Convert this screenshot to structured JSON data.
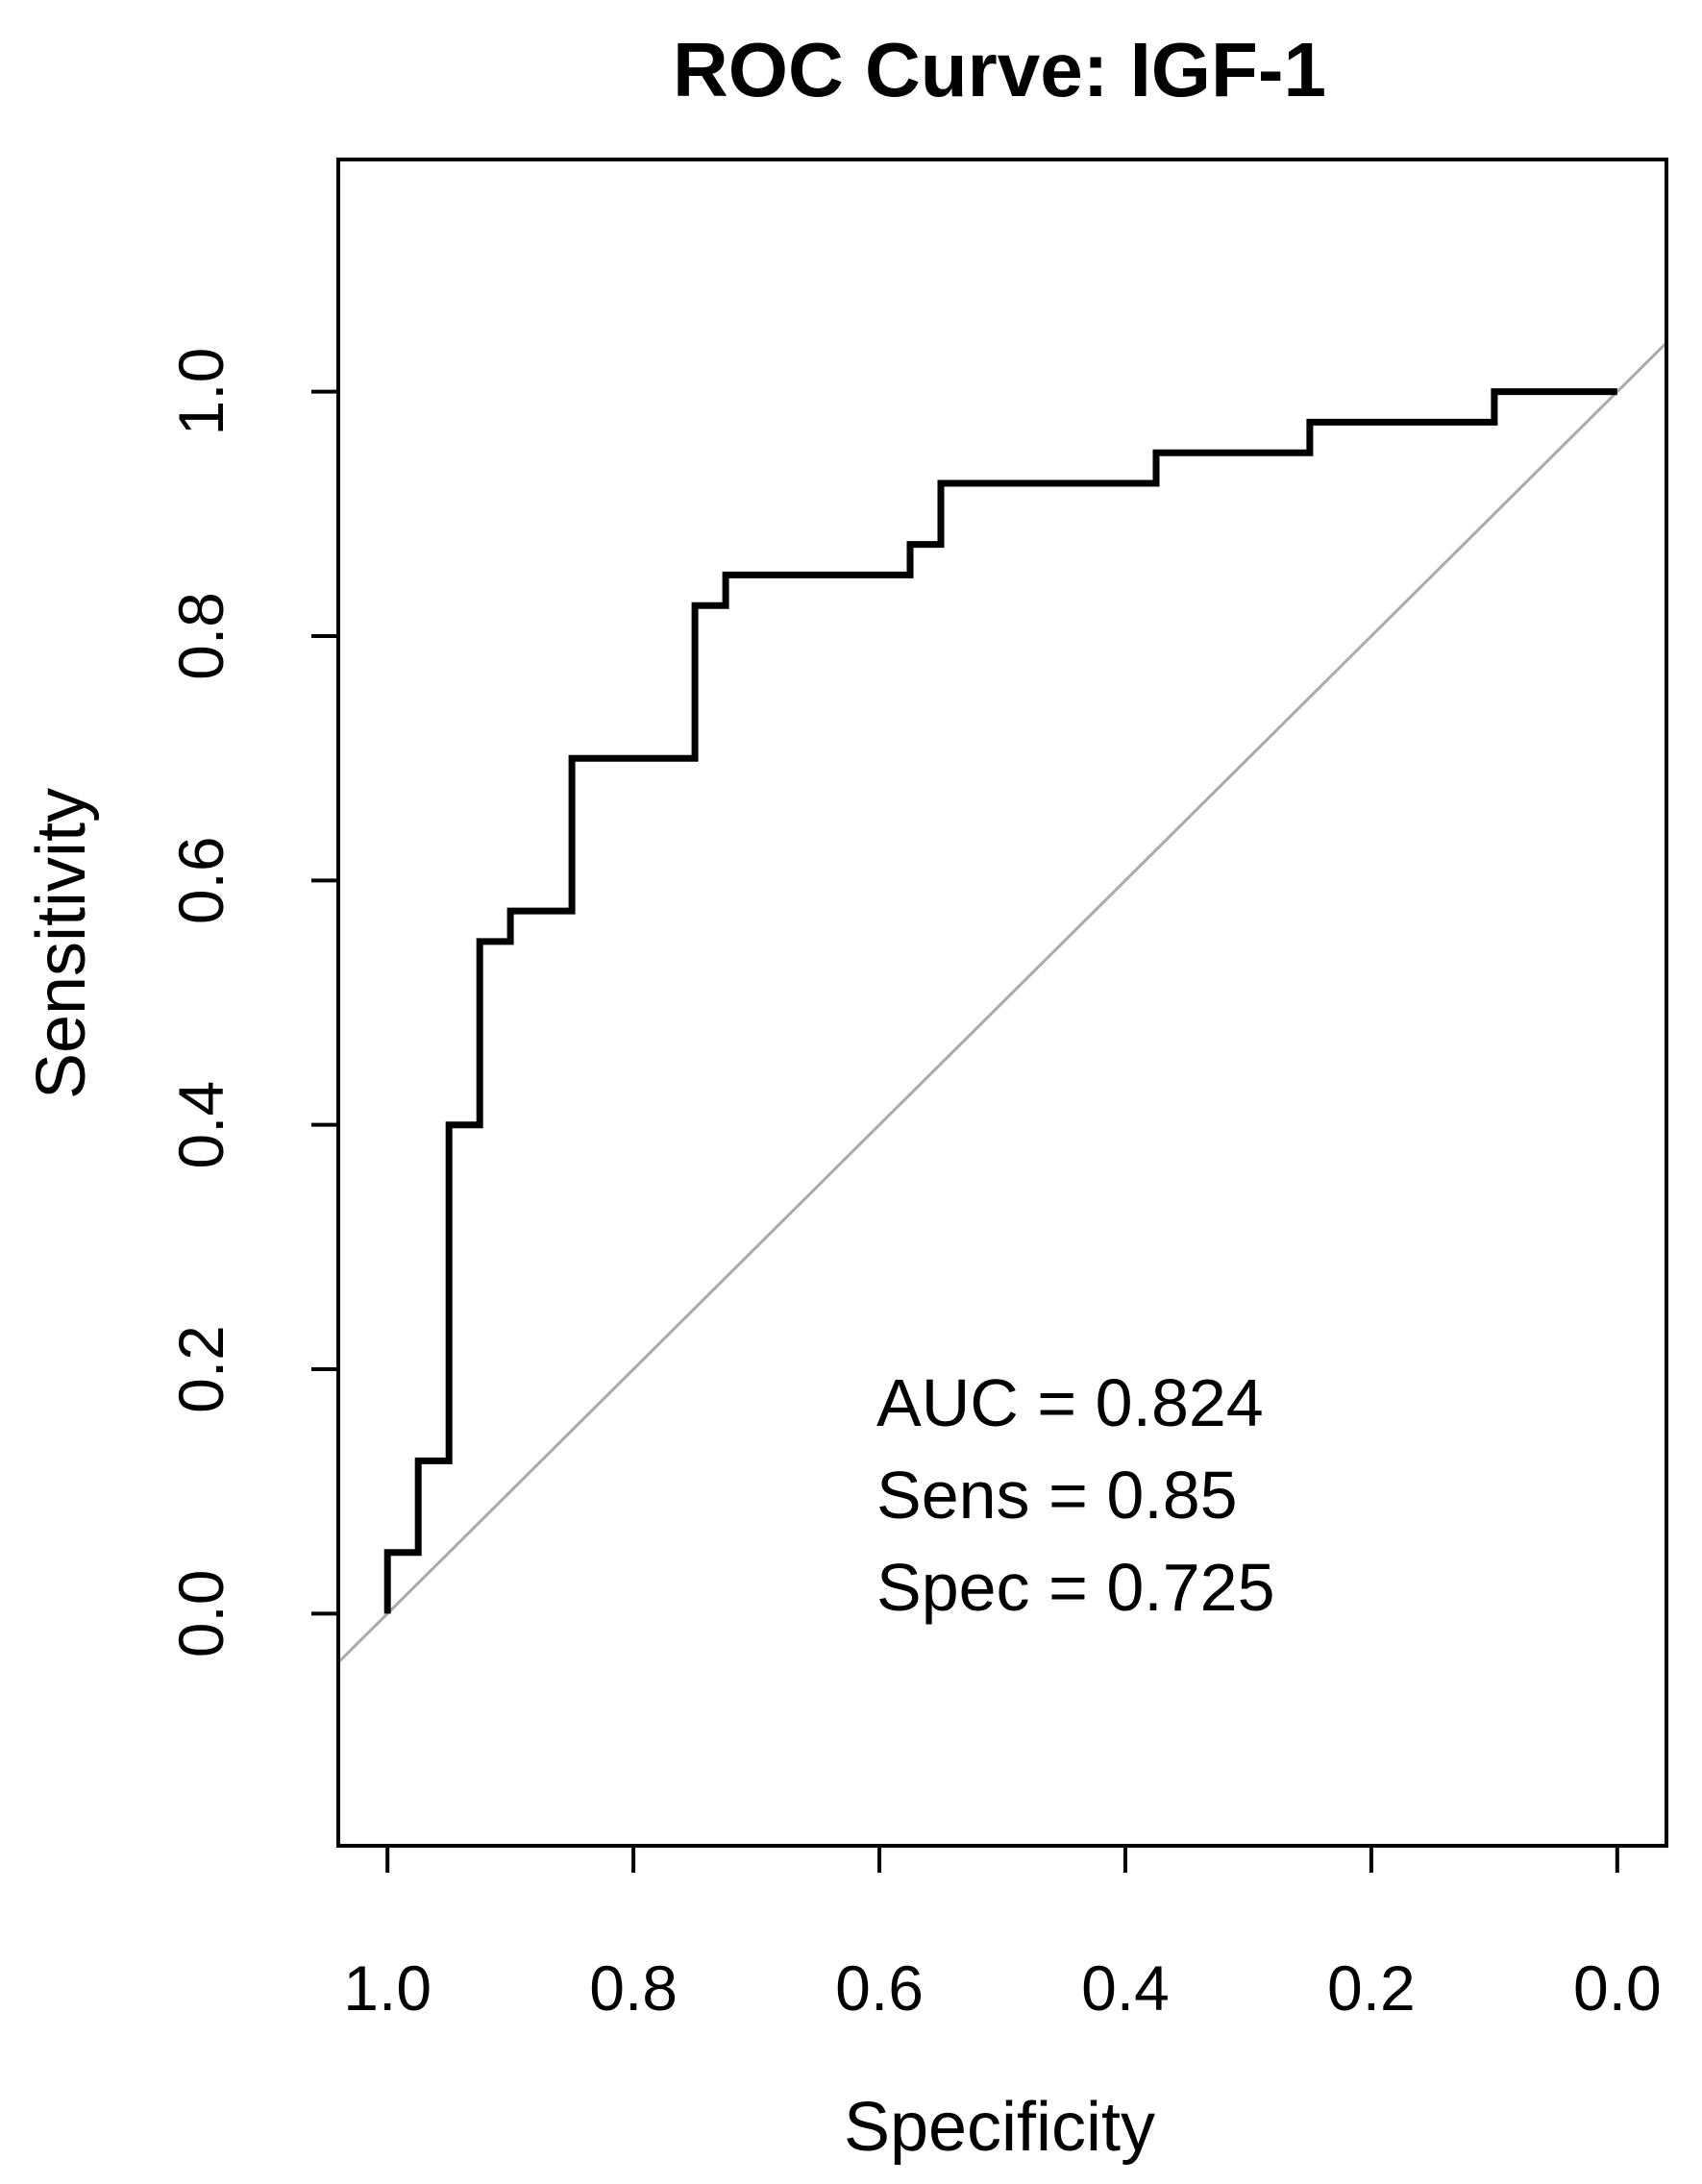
{
  "chart_data": {
    "type": "line",
    "title": "ROC Curve: IGF-1",
    "xlabel": "Specificity",
    "ylabel": "Sensitivity",
    "xlim": [
      1.04,
      -0.04
    ],
    "ylim": [
      -0.19,
      1.19
    ],
    "x_reversed": true,
    "grid": false,
    "x_ticks": [
      1.0,
      0.8,
      0.6,
      0.4,
      0.2,
      0.0
    ],
    "x_tick_labels": [
      "1.0",
      "0.8",
      "0.6",
      "0.4",
      "0.2",
      "0.0"
    ],
    "y_ticks": [
      0.0,
      0.2,
      0.4,
      0.6,
      0.8,
      1.0
    ],
    "y_tick_labels": [
      "0.0",
      "0.2",
      "0.4",
      "0.6",
      "0.8",
      "1.0"
    ],
    "series": [
      {
        "color": "#000000",
        "x": [
          1.0,
          1.0,
          0.975,
          0.975,
          0.95,
          0.95,
          0.925,
          0.925,
          0.9,
          0.9,
          0.85,
          0.85,
          0.75,
          0.75,
          0.725,
          0.725,
          0.575,
          0.575,
          0.55,
          0.55,
          0.375,
          0.375,
          0.25,
          0.25,
          0.1,
          0.1,
          0.0
        ],
        "y": [
          0.0,
          0.05,
          0.05,
          0.125,
          0.125,
          0.4,
          0.4,
          0.55,
          0.55,
          0.575,
          0.575,
          0.7,
          0.7,
          0.825,
          0.825,
          0.85,
          0.85,
          0.875,
          0.875,
          0.925,
          0.925,
          0.95,
          0.95,
          0.975,
          0.975,
          1.0,
          1.0
        ]
      }
    ],
    "reference_line": {
      "x": [
        1.04,
        -0.04
      ],
      "y": [
        -0.04,
        1.04
      ],
      "color": "#aaaaaa"
    },
    "annotations": [
      "AUC = 0.824",
      "Sens = 0.85",
      "Spec = 0.725"
    ]
  }
}
